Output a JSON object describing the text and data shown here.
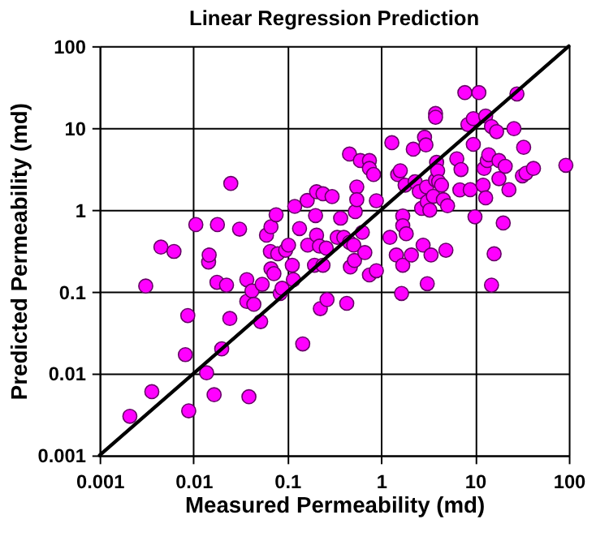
{
  "chart_data": {
    "type": "scatter",
    "title": "Linear Regression Prediction",
    "xlabel": "Measured Permeability (md)",
    "ylabel": "Predicted Permeability (md)",
    "log": "xy",
    "xlim": [
      0.001,
      100
    ],
    "ylim": [
      0.001,
      100
    ],
    "xticks": [
      0.001,
      0.01,
      0.1,
      1,
      10,
      100
    ],
    "yticks": [
      0.001,
      0.01,
      0.1,
      1,
      10,
      100
    ],
    "grid": true,
    "marker": "circle",
    "series": [
      {
        "color": "#ff00ff",
        "x": [
          0.0021,
          0.0036,
          0.0031,
          0.0045,
          0.0062,
          0.0082,
          0.0087,
          0.0089,
          0.0106,
          0.0138,
          0.0145,
          0.0147,
          0.0166,
          0.0178,
          0.018,
          0.02,
          0.0225,
          0.0244,
          0.025,
          0.031,
          0.037,
          0.037,
          0.039,
          0.042,
          0.044,
          0.052,
          0.054,
          0.06,
          0.066,
          0.067,
          0.067,
          0.072,
          0.076,
          0.079,
          0.084,
          0.088,
          0.096,
          0.103,
          0.113,
          0.116,
          0.12,
          0.135,
          0.146,
          0.163,
          0.165,
          0.195,
          0.2,
          0.205,
          0.205,
          0.22,
          0.225,
          0.24,
          0.24,
          0.26,
          0.265,
          0.3,
          0.34,
          0.37,
          0.4,
          0.43,
          0.46,
          0.46,
          0.47,
          0.51,
          0.52,
          0.53,
          0.55,
          0.55,
          0.6,
          0.63,
          0.67,
          0.75,
          0.75,
          0.75,
          0.83,
          0.89,
          0.89,
          1.24,
          1.3,
          1.45,
          1.5,
          1.6,
          1.7,
          1.7,
          1.7,
          1.65,
          1.8,
          1.85,
          2.1,
          2.2,
          2.3,
          2.55,
          2.7,
          2.8,
          2.9,
          3.0,
          3.05,
          3.1,
          3.1,
          3.3,
          3.4,
          3.6,
          3.8,
          3.8,
          3.8,
          3.9,
          4.0,
          4.1,
          4.4,
          4.6,
          4.9,
          5.1,
          6.4,
          6.9,
          7.1,
          7.8,
          8.4,
          8.9,
          9.6,
          9.6,
          10,
          11,
          12.2,
          12.5,
          13,
          13,
          13.5,
          14,
          15,
          15,
          16,
          17,
          18,
          18,
          20,
          21,
          23,
          26,
          28,
          32,
          33,
          35,
          42,
          93
        ],
        "values": [
          0.003,
          0.006,
          0.117,
          0.35,
          0.31,
          0.017,
          0.051,
          0.0035,
          0.66,
          0.0102,
          0.23,
          0.28,
          0.0055,
          0.13,
          0.66,
          0.02,
          0.12,
          0.047,
          2.1,
          0.58,
          0.14,
          0.076,
          0.0052,
          0.102,
          0.07,
          0.043,
          0.123,
          0.49,
          0.31,
          0.62,
          0.19,
          0.166,
          0.87,
          0.29,
          0.095,
          0.11,
          0.32,
          0.37,
          0.21,
          0.14,
          1.1,
          0.59,
          0.023,
          1.3,
          0.37,
          0.21,
          0.85,
          0.49,
          1.66,
          0.36,
          0.062,
          1.57,
          0.21,
          0.34,
          0.08,
          1.45,
          0.46,
          0.79,
          0.46,
          0.072,
          4.8,
          0.4,
          0.2,
          0.37,
          0.24,
          0.95,
          1.9,
          1.33,
          4.0,
          0.53,
          0.3,
          4.0,
          3.2,
          0.16,
          2.7,
          1.29,
          0.18,
          0.46,
          6.6,
          0.28,
          2.7,
          3.0,
          0.84,
          0.64,
          0.21,
          0.095,
          2.0,
          0.51,
          0.28,
          5.5,
          2.2,
          1.67,
          1.04,
          0.37,
          7.7,
          6.2,
          1.9,
          1.25,
          0.125,
          0.99,
          0.28,
          1.46,
          2.3,
          15,
          13.5,
          3.8,
          3.0,
          2.2,
          2.0,
          1.33,
          0.32,
          1.12,
          4.2,
          1.75,
          3.1,
          27,
          11,
          1.76,
          13,
          6.3,
          0.82,
          27,
          2.0,
          3.2,
          14,
          1.4,
          4.0,
          4.7,
          10.4,
          0.12,
          0.29,
          9,
          4.0,
          2.4,
          0.69,
          3.4,
          1.76,
          9.8,
          26,
          2.6,
          5.8,
          2.8,
          3.2,
          3.5
        ]
      },
      {
        "type": "line",
        "color": "#000000",
        "line_style": "solid",
        "marker": "none",
        "x": [
          0.001,
          100
        ],
        "values": [
          0.001,
          100
        ]
      }
    ]
  }
}
